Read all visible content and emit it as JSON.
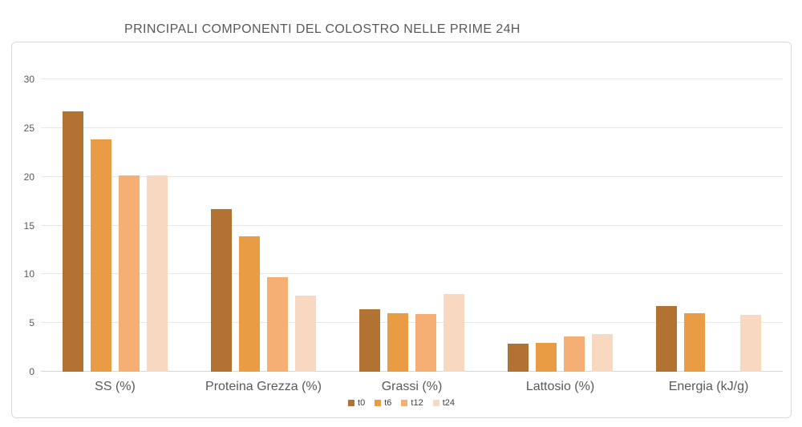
{
  "chart_data": {
    "type": "bar",
    "title": "PRINCIPALI COMPONENTI DEL COLOSTRO NELLE PRIME 24H",
    "categories": [
      "SS (%)",
      "Proteina Grezza (%)",
      "Grassi (%)",
      "Lattosio (%)",
      "Energia (kJ/g)"
    ],
    "series": [
      {
        "name": "t0",
        "color": "#B17232",
        "values": [
          26.7,
          16.7,
          6.4,
          2.9,
          6.7
        ]
      },
      {
        "name": "t6",
        "color": "#E99C44",
        "values": [
          23.8,
          13.9,
          6.0,
          3.0,
          6.0
        ]
      },
      {
        "name": "t12",
        "color": "#F5AE73",
        "values": [
          20.1,
          9.7,
          5.9,
          3.6,
          null
        ]
      },
      {
        "name": "t24",
        "color": "#F8D8C1",
        "values": [
          20.1,
          7.8,
          8.0,
          3.9,
          5.8
        ]
      }
    ],
    "xlabel": "",
    "ylabel": "",
    "ylim": [
      0,
      30
    ],
    "yticks": [
      0,
      5,
      10,
      15,
      20,
      25,
      30
    ],
    "grid": true,
    "legend_position": "bottom"
  },
  "style": {
    "grid_color": "#e7e7e7",
    "baseline_color": "#d6d6d6",
    "frame_border_color": "#d9d9d9",
    "text_color": "#595959",
    "legend_text_color": "#404040"
  }
}
